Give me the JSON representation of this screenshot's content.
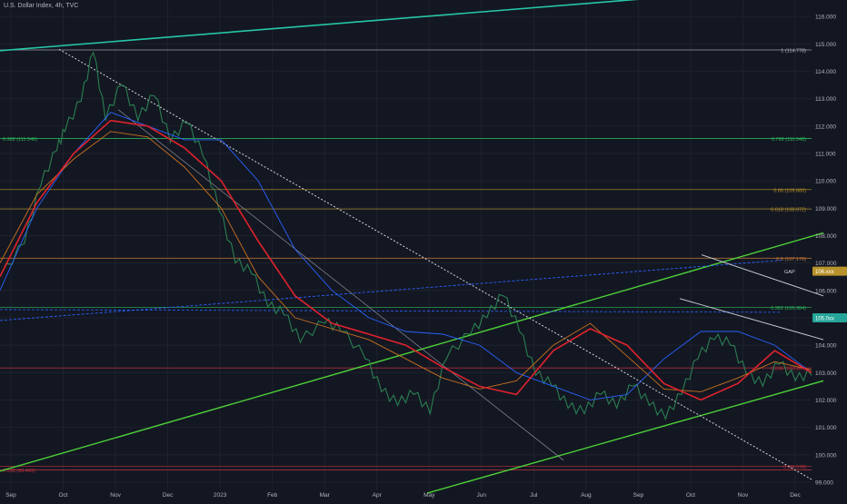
{
  "header": {
    "title": "U.S. Dollar Index, 4h, TVC"
  },
  "colors": {
    "background": "#131722",
    "axis_text": "#b2b5be",
    "teal_channel": "#26c6a6",
    "green_channel": "#4cd137",
    "red_ma": "#e0222d",
    "orange_ma": "#c9711f",
    "blue_ma": "#2962ff",
    "fib_green": "#2eb35a",
    "fib_gold": "#b8932b",
    "fib_orange": "#c97a3a",
    "fib_red": "#c2313f",
    "price_tag": "#26a69a"
  },
  "chart_data": {
    "type": "line",
    "title": "U.S. Dollar Index, 4h, TVC",
    "xlabel": "",
    "ylabel": "",
    "x_ticks": [
      "Sep",
      "Oct",
      "Nov",
      "Dec",
      "2023",
      "Feb",
      "Mar",
      "Apr",
      "May",
      "Jun",
      "Jul",
      "Aug",
      "Sep",
      "Oct",
      "Nov",
      "Dec"
    ],
    "y_ticks": [
      116,
      115,
      114,
      113,
      112,
      111,
      110,
      109,
      108,
      107,
      106,
      105,
      104,
      103,
      102,
      101,
      100,
      99
    ],
    "ylim": [
      98.7,
      116.6
    ],
    "grid": true,
    "price_path": [
      {
        "x": 0.0,
        "y": 106.5
      },
      {
        "x": 0.03,
        "y": 107.8
      },
      {
        "x": 0.05,
        "y": 109.9
      },
      {
        "x": 0.07,
        "y": 111.2
      },
      {
        "x": 0.08,
        "y": 111.9
      },
      {
        "x": 0.1,
        "y": 113.0
      },
      {
        "x": 0.115,
        "y": 114.78
      },
      {
        "x": 0.13,
        "y": 112.3
      },
      {
        "x": 0.15,
        "y": 113.6
      },
      {
        "x": 0.17,
        "y": 112.3
      },
      {
        "x": 0.19,
        "y": 113.2
      },
      {
        "x": 0.21,
        "y": 111.5
      },
      {
        "x": 0.23,
        "y": 112.2
      },
      {
        "x": 0.25,
        "y": 111.0
      },
      {
        "x": 0.27,
        "y": 109.0
      },
      {
        "x": 0.29,
        "y": 107.1
      },
      {
        "x": 0.31,
        "y": 106.7
      },
      {
        "x": 0.33,
        "y": 105.5
      },
      {
        "x": 0.35,
        "y": 105.2
      },
      {
        "x": 0.37,
        "y": 104.2
      },
      {
        "x": 0.4,
        "y": 104.9
      },
      {
        "x": 0.42,
        "y": 104.6
      },
      {
        "x": 0.45,
        "y": 103.6
      },
      {
        "x": 0.47,
        "y": 102.4
      },
      {
        "x": 0.49,
        "y": 101.9
      },
      {
        "x": 0.51,
        "y": 102.3
      },
      {
        "x": 0.53,
        "y": 101.6
      },
      {
        "x": 0.55,
        "y": 103.6
      },
      {
        "x": 0.58,
        "y": 104.5
      },
      {
        "x": 0.6,
        "y": 105.1
      },
      {
        "x": 0.62,
        "y": 105.9
      },
      {
        "x": 0.64,
        "y": 104.6
      },
      {
        "x": 0.66,
        "y": 103.0
      },
      {
        "x": 0.68,
        "y": 102.6
      },
      {
        "x": 0.7,
        "y": 101.8
      },
      {
        "x": 0.72,
        "y": 101.6
      },
      {
        "x": 0.74,
        "y": 102.3
      },
      {
        "x": 0.76,
        "y": 101.8
      },
      {
        "x": 0.78,
        "y": 102.6
      },
      {
        "x": 0.8,
        "y": 101.9
      },
      {
        "x": 0.82,
        "y": 101.4
      },
      {
        "x": 0.84,
        "y": 102.3
      },
      {
        "x": 0.86,
        "y": 103.6
      },
      {
        "x": 0.88,
        "y": 104.3
      },
      {
        "x": 0.9,
        "y": 104.1
      },
      {
        "x": 0.92,
        "y": 103.0
      },
      {
        "x": 0.94,
        "y": 102.6
      },
      {
        "x": 0.96,
        "y": 103.4
      },
      {
        "x": 0.98,
        "y": 102.8
      },
      {
        "x": 1.0,
        "y": 103.0
      }
    ],
    "series": [
      {
        "values": [
          106.0,
          109.0,
          111.0,
          112.5,
          112.0,
          111.5,
          111.5,
          110.0,
          107.5,
          106.0,
          105.0,
          104.5,
          104.4,
          104.0,
          103.0,
          102.5,
          102.0,
          102.2,
          103.5,
          104.5,
          104.5,
          104.0,
          103.0
        ]
      },
      {
        "values": [
          107.0,
          109.5,
          110.8,
          111.8,
          111.6,
          110.5,
          109.0,
          106.5,
          105.0,
          104.6,
          104.2,
          103.5,
          102.8,
          102.4,
          102.7,
          104.0,
          104.8,
          103.6,
          102.4,
          102.3,
          102.8,
          103.4,
          103.1
        ]
      },
      {
        "values": [
          106.5,
          109.2,
          111.0,
          112.2,
          112.0,
          111.2,
          110.0,
          107.8,
          105.8,
          104.8,
          104.4,
          104.0,
          103.2,
          102.5,
          102.2,
          103.8,
          104.6,
          104.0,
          102.6,
          102.0,
          102.6,
          103.8,
          103.0
        ]
      }
    ],
    "levels": [
      {
        "label": "1 (114.778)",
        "value": 114.778
      },
      {
        "label": "0.786 (111.548)",
        "value": 111.548
      },
      {
        "label": "0.382 (111.548)",
        "value": 111.548
      },
      {
        "label": "0.66 (109.680)",
        "value": 109.68
      },
      {
        "label": "0.618 (108.972)",
        "value": 108.972
      },
      {
        "label": "0.5 (107.176)",
        "value": 107.176
      },
      {
        "label": "0.382 (105.384)",
        "value": 105.384
      },
      {
        "label": "0.236 (103.169)",
        "value": 103.169
      },
      {
        "label": "0 (99.578)",
        "value": 99.578
      },
      {
        "label": "0.236 (99.443)",
        "value": 99.443
      }
    ],
    "price_tags": [
      {
        "label": "105.0xx",
        "value": 105.0
      },
      {
        "label": "106.xxx",
        "value": 106.7
      }
    ],
    "gap_label": "GAP",
    "annotations": [
      "GAP"
    ]
  }
}
